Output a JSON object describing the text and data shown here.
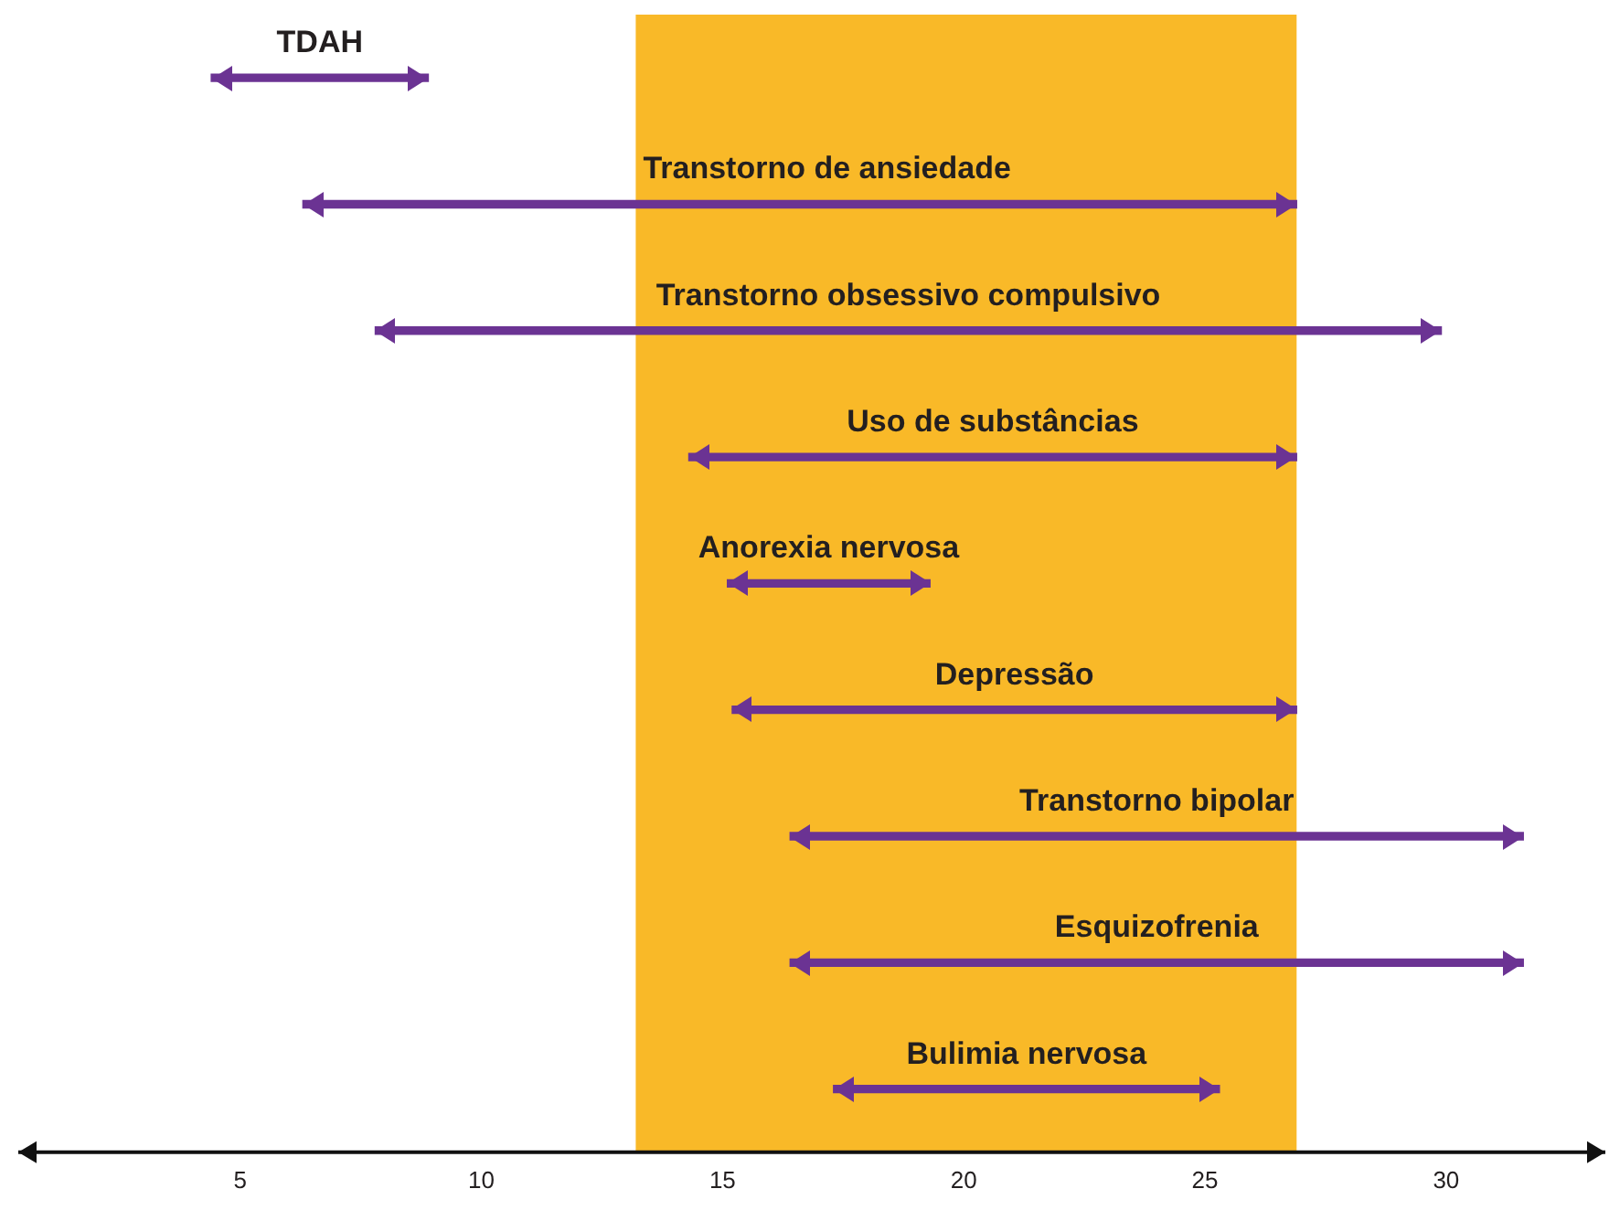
{
  "chart_data": {
    "type": "bar",
    "orientation": "horizontal",
    "categories": [
      "TDAH",
      "Transtorno de ansiedade",
      "Transtorno obsessivo compulsivo",
      "Uso de substâncias",
      "Anorexia nervosa",
      "Depressão",
      "Transtorno bipolar",
      "Esquizofrenia",
      "Bulimia nervosa"
    ],
    "base": [
      4.4,
      6.3,
      7.8,
      14.3,
      15.1,
      15.2,
      16.4,
      16.4,
      17.3
    ],
    "values": [
      4.5,
      20.6,
      22.1,
      12.6,
      4.2,
      11.7,
      15.2,
      15.2,
      8.0
    ],
    "color": "#6b3393",
    "xlim": [
      0.4,
      33.3
    ],
    "xticks": [
      5,
      10,
      15,
      20,
      25,
      30
    ],
    "bands": [
      {
        "axis": "x",
        "from": 13.2,
        "to": 26.9,
        "color": "#f9b928"
      }
    ],
    "tick_labels": "x",
    "grid": false,
    "legend": false
  }
}
